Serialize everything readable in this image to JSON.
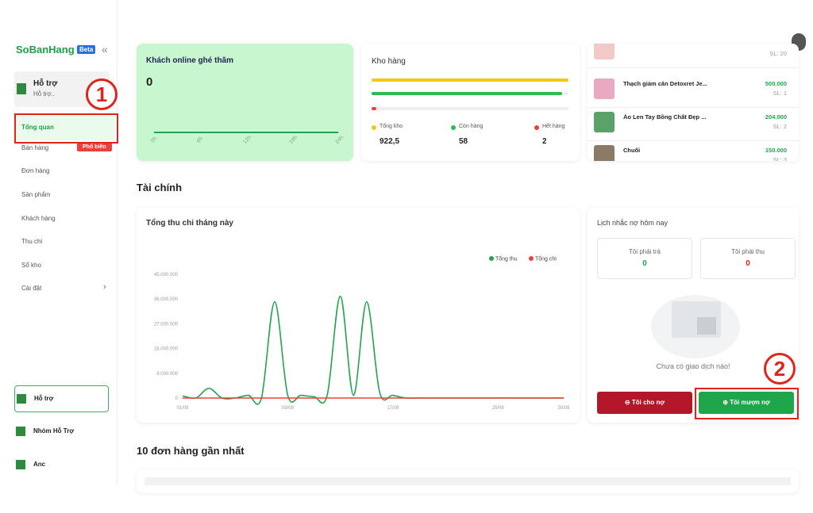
{
  "sidebar": {
    "brand": "SoBanHang",
    "badge": "Beta",
    "collapse": "«",
    "user": {
      "name": "Hỗ trợ",
      "sub": "Hỗ trợ.."
    },
    "menu": [
      {
        "label": "Tổng quan"
      },
      {
        "label": "Bán hàng",
        "tag": "Phổ biến"
      },
      {
        "label": "Đơn hàng"
      },
      {
        "label": "Sản phẩm"
      },
      {
        "label": "Khách hàng"
      },
      {
        "label": "Thu chi"
      },
      {
        "label": "Sổ kho"
      },
      {
        "label": "Cài đặt",
        "arrow": "›"
      }
    ],
    "bottom": [
      "Hỗ trợ",
      "Nhóm Hỗ Trợ",
      "Anc"
    ]
  },
  "annotations": [
    "1",
    "2"
  ],
  "online": {
    "title": "Khách online ghé thăm",
    "value": 0,
    "hours": [
      "0h",
      "6h",
      "12h",
      "18h",
      "24h"
    ]
  },
  "stock": {
    "title": "Kho hàng",
    "legend": [
      {
        "name": "Tổng kho",
        "value": "922,5",
        "color": "#f5c518"
      },
      {
        "name": "Còn hàng",
        "value": 58,
        "color": "#2dbd4e"
      },
      {
        "name": "Hết hàng",
        "value": 2,
        "color": "#e8413b"
      }
    ]
  },
  "products": [
    {
      "qty": "SL: 20"
    },
    {
      "name": "Thạch giảm cân Detoxret Je...",
      "price": "500.000",
      "qty": "SL: 1"
    },
    {
      "name": "Áo Len Tay Bồng Chất Đẹp ...",
      "price": "204.000",
      "qty": "SL: 2"
    },
    {
      "name": "Chuối",
      "price": "150.000",
      "qty": "SL: 3"
    }
  ],
  "finance": {
    "heading": "Tài chính",
    "chart": {
      "type": "line",
      "title": "Tổng thu chi tháng này",
      "categories": [
        "01/09",
        null,
        null,
        null,
        null,
        null,
        null,
        null,
        "09/09",
        null,
        null,
        null,
        null,
        null,
        null,
        null,
        "17/09",
        null,
        null,
        null,
        null,
        null,
        null,
        null,
        "25/09",
        null,
        null,
        null,
        null,
        "30/09"
      ],
      "series": [
        {
          "name": "Tổng thu",
          "color": "#1fa64a",
          "values": [
            800000,
            0,
            3500000,
            0,
            0,
            1000000,
            0,
            35000000,
            1000000,
            1000000,
            500000,
            1000000,
            37000000,
            1000000,
            35000000,
            2000000,
            1000000,
            0,
            0,
            0,
            0,
            0,
            0,
            0,
            0,
            0,
            0,
            0,
            0,
            0
          ]
        },
        {
          "name": "Tổng chi",
          "color": "#ef4036",
          "values": [
            0,
            0,
            0,
            0,
            0,
            0,
            0,
            0,
            0,
            0,
            0,
            0,
            0,
            0,
            0,
            0,
            0,
            0,
            0,
            0,
            0,
            0,
            0,
            0,
            0,
            0,
            0,
            0,
            0,
            0
          ]
        }
      ],
      "ylim": [
        0,
        45000000
      ],
      "yticks": [
        0,
        {
          "value": 9000000,
          "label": "9.000.000"
        },
        {
          "value": 18000000,
          "label": "18.000.000"
        },
        {
          "value": 27000000,
          "label": "27.000.000"
        },
        {
          "value": 36000000,
          "label": "36.000.000"
        },
        {
          "value": 45000000,
          "label": "45.000.000"
        }
      ],
      "legend": "top-right",
      "grid": false
    },
    "debt": {
      "title": "Lịch nhắc nợ hôm nay",
      "pay_label": "Tôi phải trả",
      "pay_value": 0,
      "receive_label": "Tôi phải thu",
      "receive_value": 0,
      "empty": "Chưa có giao dịch nào!",
      "lend": "Tôi cho nợ",
      "borrow": "Tôi mượn nợ"
    }
  },
  "orders": {
    "heading": "10 đơn hàng gần nhất"
  }
}
